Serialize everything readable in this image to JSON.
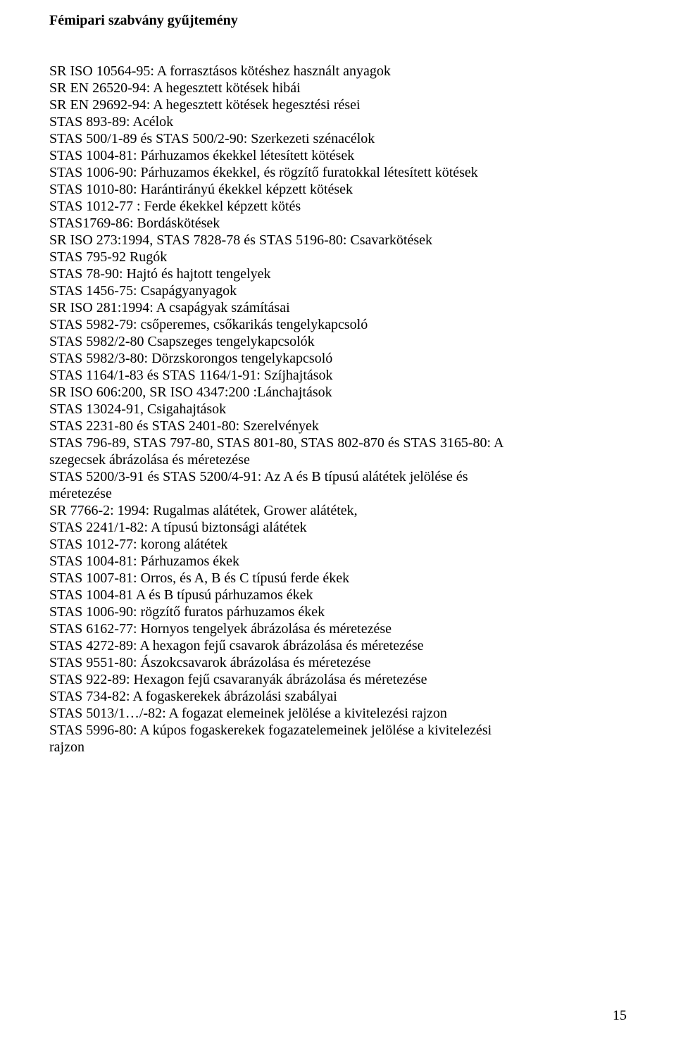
{
  "title": "Fémipari szabvány gyűjtemény",
  "lines": [
    {
      "text": "SR ISO 10564-95: A forrasztásos kötéshez használt anyagok",
      "indent": true
    },
    {
      "text": "SR EN 26520-94: A hegesztett kötések hibái",
      "indent": true
    },
    {
      "text": "SR EN 29692-94: A hegesztett kötések hegesztési rései",
      "indent": true
    },
    {
      "text": "STAS 893-89: Acélok",
      "indent": true
    },
    {
      "text": "STAS 500/1-89 és STAS 500/2-90: Szerkezeti szénacélok",
      "indent": true
    },
    {
      "text": "STAS 1004-81: Párhuzamos ékekkel létesített kötések",
      "indent": true
    },
    {
      "text": "STAS 1006-90: Párhuzamos ékekkel, és rögzítő furatokkal létesített kötések",
      "indent": true
    },
    {
      "text": "STAS 1010-80: Harántirányú ékekkel képzett kötések",
      "indent": true
    },
    {
      "text": "STAS 1012-77 : Ferde ékekkel képzett kötés",
      "indent": true
    },
    {
      "text": "STAS1769-86: Bordáskötések",
      "indent": true
    },
    {
      "text": "SR ISO 273:1994, STAS 7828-78 és STAS 5196-80: Csavarkötések",
      "indent": true
    },
    {
      "text": "STAS 795-92 Rugók",
      "indent": true
    },
    {
      "text": "STAS 78-90: Hajtó és hajtott tengelyek",
      "indent": true
    },
    {
      "text": "STAS 1456-75: Csapágyanyagok",
      "indent": true
    },
    {
      "text": "SR ISO 281:1994: A csapágyak számításai",
      "indent": true
    },
    {
      "text": "STAS 5982-79: csőperemes, csőkarikás tengelykapcsoló",
      "indent": true
    },
    {
      "text": "STAS 5982/2-80 Csapszeges tengelykapcsolók",
      "indent": true
    },
    {
      "text": "STAS 5982/3-80: Dörzskorongos tengelykapcsoló",
      "indent": true
    },
    {
      "text": "STAS 1164/1-83 és STAS 1164/1-91: Szíjhajtások",
      "indent": true
    },
    {
      "text": "SR ISO 606:200, SR ISO 4347:200 :Lánchajtások",
      "indent": true
    },
    {
      "text": "STAS 13024-91, Csigahajtások",
      "indent": true
    },
    {
      "text": "STAS 2231-80 és STAS 2401-80: Szerelvények",
      "indent": true
    },
    {
      "text": "STAS 796-89, STAS 797-80, STAS 801-80, STAS 802-870 és STAS 3165-80: A",
      "indent": true
    },
    {
      "text": "szegecsek ábrázolása és méretezése",
      "indent": false
    },
    {
      "text": "STAS 5200/3-91 és STAS 5200/4-91: Az A és B típusú alátétek jelölése és",
      "indent": true
    },
    {
      "text": "méretezése",
      "indent": false
    },
    {
      "text": "SR 7766-2: 1994: Rugalmas alátétek, Grower alátétek,",
      "indent": true
    },
    {
      "text": "STAS 2241/1-82: A típusú biztonsági alátétek",
      "indent": true
    },
    {
      "text": "STAS 1012-77: korong alátétek",
      "indent": true
    },
    {
      "text": "STAS 1004-81: Párhuzamos ékek",
      "indent": true
    },
    {
      "text": "STAS 1007-81: Orros, és A, B és C típusú ferde ékek",
      "indent": true
    },
    {
      "text": "STAS 1004-81 A és B típusú párhuzamos ékek",
      "indent": true
    },
    {
      "text": "STAS 1006-90: rögzítő furatos párhuzamos ékek",
      "indent": true
    },
    {
      "text": "STAS 6162-77: Hornyos tengelyek ábrázolása és méretezése",
      "indent": true
    },
    {
      "text": "STAS 4272-89: A hexagon fejű csavarok ábrázolása és méretezése",
      "indent": true
    },
    {
      "text": "STAS 9551-80: Ászokcsavarok ábrázolása és méretezése",
      "indent": true
    },
    {
      "text": "STAS 922-89: Hexagon fejű csavaranyák ábrázolása és méretezése",
      "indent": true
    },
    {
      "text": "STAS 734-82: A fogaskerekek ábrázolási szabályai",
      "indent": true
    },
    {
      "text": "STAS 5013/1…/-82: A fogazat elemeinek jelölése a kivitelezési rajzon",
      "indent": true
    },
    {
      "text": "STAS 5996-80:  A kúpos fogaskerekek fogazatelemeinek jelölése a kivitelezési",
      "indent": true
    },
    {
      "text": "rajzon",
      "indent": false
    }
  ],
  "pageNumber": "15"
}
